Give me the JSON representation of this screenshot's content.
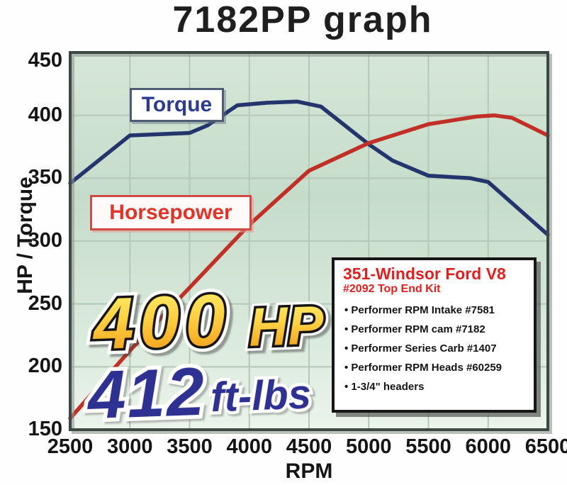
{
  "page_title": "7182PP graph",
  "axis": {
    "x_label": "RPM",
    "y_label": "HP / Torque"
  },
  "chart_data": {
    "type": "line",
    "title": "7182PP graph",
    "xlabel": "RPM",
    "ylabel": "HP / Torque",
    "x_range": [
      2500,
      6500
    ],
    "y_range": [
      150,
      450
    ],
    "x_ticks": [
      2500,
      3000,
      3500,
      4000,
      4500,
      5000,
      5500,
      6000,
      6500
    ],
    "y_ticks": [
      450,
      400,
      350,
      300,
      250,
      200,
      150
    ],
    "grid": true,
    "legend_position": "inline-labels-on-plot",
    "plot_bg_top": "#d6e7d8",
    "plot_bg_mid": "#c6dcca",
    "plot_bg_bottom": "#ecf4ec",
    "gridline_color": "#b3c8b6",
    "series": [
      {
        "name": "Torque",
        "units": "ft-lbs",
        "color": "#24356e",
        "points": [
          [
            2500,
            346
          ],
          [
            3000,
            384
          ],
          [
            3250,
            385
          ],
          [
            3500,
            386
          ],
          [
            3650,
            392
          ],
          [
            3900,
            408
          ],
          [
            4150,
            410
          ],
          [
            4400,
            411
          ],
          [
            4600,
            407
          ],
          [
            5000,
            377
          ],
          [
            5200,
            364
          ],
          [
            5500,
            352
          ],
          [
            5850,
            350
          ],
          [
            6000,
            347
          ],
          [
            6500,
            305
          ]
        ]
      },
      {
        "name": "Horsepower",
        "units": "HP",
        "color": "#c22f26",
        "points": [
          [
            2500,
            159
          ],
          [
            3000,
            213
          ],
          [
            3500,
            263
          ],
          [
            4000,
            313
          ],
          [
            4500,
            356
          ],
          [
            5000,
            378
          ],
          [
            5500,
            393
          ],
          [
            5900,
            399
          ],
          [
            6050,
            400
          ],
          [
            6200,
            398
          ],
          [
            6500,
            384
          ]
        ]
      }
    ],
    "annotations": [
      "400 HP",
      "412 ft-lbs"
    ]
  },
  "callout": {
    "hp_value": "400",
    "hp_unit": "HP",
    "tq_value": "412",
    "tq_unit": "ft-lbs",
    "hp_gradient_top": "#fff46e",
    "hp_gradient_bottom": "#ef9512",
    "tq_color": "#2e3192"
  },
  "info_box": {
    "title": "351-Windsor Ford V8",
    "subtitle": "#2092 Top End Kit",
    "items": [
      "Performer RPM Intake #7581",
      "Performer RPM cam #7182",
      "Performer Series Carb #1407",
      "Performer RPM Heads #60259",
      "1-3/4\" headers"
    ]
  }
}
